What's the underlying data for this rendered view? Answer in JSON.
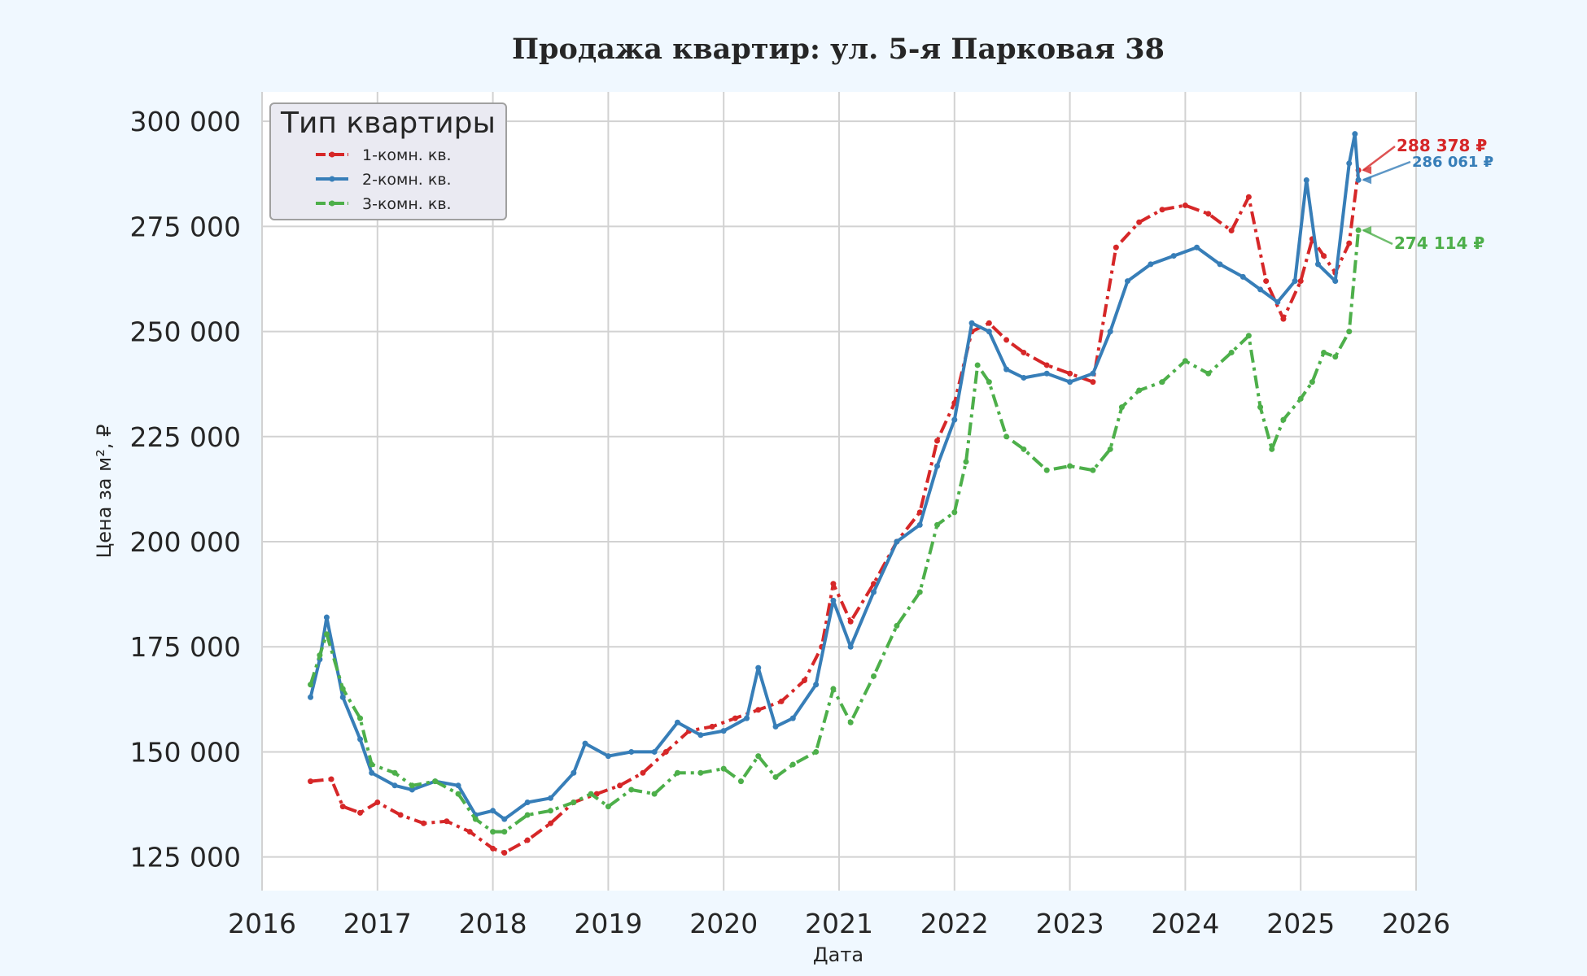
{
  "chart_data": {
    "type": "line",
    "title": "Продажа квартир: ул. 5-я Парковая 38",
    "xlabel": "Дата",
    "ylabel": "Цена за м², ₽",
    "xlim": [
      2016,
      2026
    ],
    "ylim": [
      117000,
      307000
    ],
    "x_ticks": [
      2016,
      2017,
      2018,
      2019,
      2020,
      2021,
      2022,
      2023,
      2024,
      2025,
      2026
    ],
    "y_ticks": [
      125000,
      150000,
      175000,
      200000,
      225000,
      250000,
      275000,
      300000
    ],
    "y_tick_labels": [
      "125 000",
      "150 000",
      "175 000",
      "200 000",
      "225 000",
      "250 000",
      "275 000",
      "300 000"
    ],
    "grid": true,
    "legend": {
      "title": "Тип квартиры",
      "placement": "top-left"
    },
    "series": [
      {
        "name": "1-комн. кв.",
        "color": "#d62728",
        "style": "dash-dot",
        "end_label": "288 378 ₽",
        "x": [
          2016.42,
          2016.6,
          2016.7,
          2016.85,
          2017.0,
          2017.2,
          2017.4,
          2017.6,
          2017.8,
          2018.0,
          2018.1,
          2018.3,
          2018.5,
          2018.7,
          2018.9,
          2019.1,
          2019.3,
          2019.5,
          2019.7,
          2019.9,
          2020.1,
          2020.3,
          2020.5,
          2020.7,
          2020.85,
          2020.95,
          2021.1,
          2021.3,
          2021.5,
          2021.7,
          2021.85,
          2022.0,
          2022.15,
          2022.3,
          2022.45,
          2022.6,
          2022.8,
          2023.0,
          2023.2,
          2023.4,
          2023.6,
          2023.8,
          2024.0,
          2024.2,
          2024.4,
          2024.55,
          2024.7,
          2024.85,
          2025.0,
          2025.1,
          2025.2,
          2025.3,
          2025.42,
          2025.5
        ],
        "y": [
          143000,
          143500,
          137000,
          135500,
          138000,
          135000,
          133000,
          133500,
          131000,
          127000,
          126000,
          129000,
          133000,
          138000,
          140000,
          142000,
          145000,
          150000,
          155000,
          156000,
          158000,
          160000,
          162000,
          167000,
          175000,
          190000,
          181000,
          190000,
          200000,
          207000,
          224000,
          233000,
          250000,
          252000,
          248000,
          245000,
          242000,
          240000,
          238000,
          270000,
          276000,
          279000,
          280000,
          278000,
          274000,
          282000,
          262000,
          253000,
          262000,
          272000,
          268000,
          264000,
          271000,
          288378
        ]
      },
      {
        "name": "2-комн. кв.",
        "color": "#377eb8",
        "style": "solid",
        "end_label": "286 061 ₽",
        "x": [
          2016.42,
          2016.5,
          2016.56,
          2016.7,
          2016.85,
          2016.95,
          2017.15,
          2017.3,
          2017.5,
          2017.7,
          2017.85,
          2018.0,
          2018.1,
          2018.3,
          2018.5,
          2018.7,
          2018.8,
          2019.0,
          2019.2,
          2019.4,
          2019.6,
          2019.8,
          2020.0,
          2020.2,
          2020.3,
          2020.45,
          2020.6,
          2020.8,
          2020.95,
          2021.1,
          2021.3,
          2021.5,
          2021.7,
          2021.85,
          2022.0,
          2022.15,
          2022.3,
          2022.45,
          2022.6,
          2022.8,
          2023.0,
          2023.2,
          2023.35,
          2023.5,
          2023.7,
          2023.9,
          2024.1,
          2024.3,
          2024.5,
          2024.65,
          2024.8,
          2024.95,
          2025.05,
          2025.15,
          2025.3,
          2025.42,
          2025.47,
          2025.5
        ],
        "y": [
          163000,
          172000,
          182000,
          163000,
          153000,
          145000,
          142000,
          141000,
          143000,
          142000,
          135000,
          136000,
          134000,
          138000,
          139000,
          145000,
          152000,
          149000,
          150000,
          150000,
          157000,
          154000,
          155000,
          158000,
          170000,
          156000,
          158000,
          166000,
          186000,
          175000,
          188000,
          200000,
          204000,
          218000,
          229000,
          252000,
          250000,
          241000,
          239000,
          240000,
          238000,
          240000,
          250000,
          262000,
          266000,
          268000,
          270000,
          266000,
          263000,
          260000,
          257000,
          262000,
          286000,
          266000,
          262000,
          290000,
          297000,
          286061
        ]
      },
      {
        "name": "3-комн. кв.",
        "color": "#4daf4a",
        "style": "dash-dot",
        "end_label": "274 114 ₽",
        "x": [
          2016.42,
          2016.5,
          2016.56,
          2016.7,
          2016.85,
          2016.95,
          2017.15,
          2017.3,
          2017.5,
          2017.7,
          2017.85,
          2018.0,
          2018.1,
          2018.3,
          2018.5,
          2018.7,
          2018.85,
          2019.0,
          2019.2,
          2019.4,
          2019.6,
          2019.8,
          2020.0,
          2020.15,
          2020.3,
          2020.45,
          2020.6,
          2020.8,
          2020.95,
          2021.1,
          2021.3,
          2021.5,
          2021.7,
          2021.85,
          2022.0,
          2022.1,
          2022.2,
          2022.3,
          2022.45,
          2022.6,
          2022.8,
          2023.0,
          2023.2,
          2023.35,
          2023.45,
          2023.6,
          2023.8,
          2024.0,
          2024.2,
          2024.4,
          2024.55,
          2024.65,
          2024.75,
          2024.85,
          2025.0,
          2025.1,
          2025.2,
          2025.3,
          2025.42,
          2025.5
        ],
        "y": [
          166000,
          173000,
          178000,
          165000,
          158000,
          147000,
          145000,
          142000,
          143000,
          140000,
          134000,
          131000,
          131000,
          135000,
          136000,
          138000,
          140000,
          137000,
          141000,
          140000,
          145000,
          145000,
          146000,
          143000,
          149000,
          144000,
          147000,
          150000,
          165000,
          157000,
          168000,
          180000,
          188000,
          204000,
          207000,
          219000,
          242000,
          238000,
          225000,
          222000,
          217000,
          218000,
          217000,
          222000,
          232000,
          236000,
          238000,
          243000,
          240000,
          245000,
          249000,
          232000,
          222000,
          229000,
          234000,
          238000,
          245000,
          244000,
          250000,
          274114
        ]
      }
    ]
  }
}
